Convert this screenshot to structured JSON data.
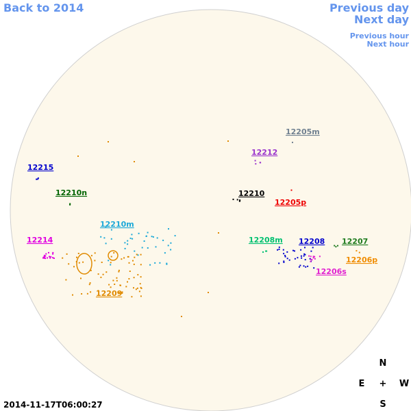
{
  "navigation": {
    "back": "Back to 2014",
    "previous_day": "Previous day",
    "next_day": "Next day",
    "previous_hour": "Previous hour",
    "next_hour": "Next hour"
  },
  "regions": [
    {
      "label": "12205m",
      "color": "#708090"
    },
    {
      "label": "12212",
      "color": "#9932cc"
    },
    {
      "label": "12215",
      "color": "#0000cd"
    },
    {
      "label": "12210n",
      "color": "#006400"
    },
    {
      "label": "12210",
      "color": "#000000"
    },
    {
      "label": "12205p",
      "color": "#ee0000"
    },
    {
      "label": "12210m",
      "color": "#1aa8d8"
    },
    {
      "label": "12214",
      "color": "#e000e0"
    },
    {
      "label": "12208m",
      "color": "#00c070"
    },
    {
      "label": "12208",
      "color": "#0000cd"
    },
    {
      "label": "12207",
      "color": "#1e7b1e"
    },
    {
      "label": "12206p",
      "color": "#f08c00"
    },
    {
      "label": "12206s",
      "color": "#e020d0"
    },
    {
      "label": "12209",
      "color": "#e08a00"
    }
  ],
  "compass": {
    "north": "N",
    "east": "E",
    "center": "+",
    "west": "W",
    "south": "S"
  },
  "timestamp": "2014-11-17T06:00:27"
}
